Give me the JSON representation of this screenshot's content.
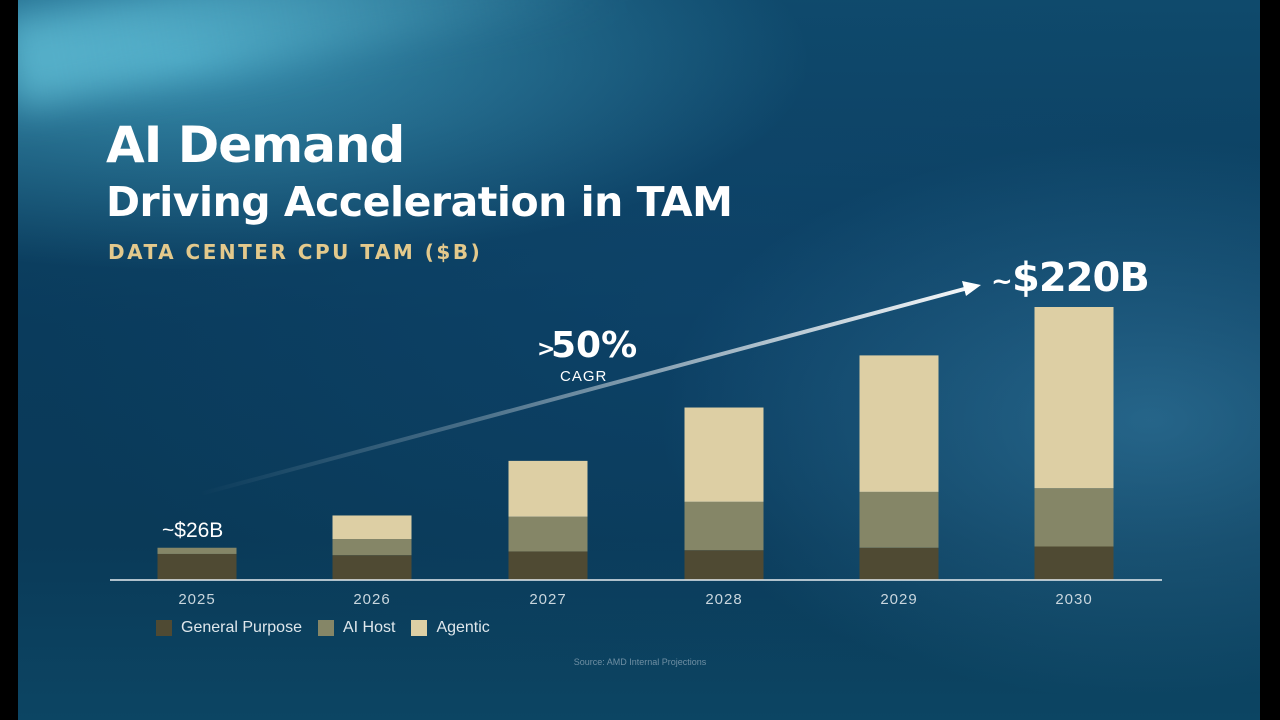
{
  "slide": {
    "title_line1": "AI Demand",
    "title_line2": "Driving Acceleration in TAM",
    "source": "Source: AMD Internal Projections"
  },
  "colors": {
    "general_purpose": "#4f4a33",
    "ai_host": "#858667",
    "agentic": "#ddcfa4",
    "accent_subtitle": "#e3c98c",
    "axis_line": "#e6edf1"
  },
  "chart_data": {
    "type": "bar",
    "stacked": true,
    "title": "DATA CENTER CPU TAM ($B)",
    "categories": [
      "2025",
      "2026",
      "2027",
      "2028",
      "2029",
      "2030"
    ],
    "series": [
      {
        "name": "General Purpose",
        "values": [
          21,
          20,
          23,
          24,
          26,
          27
        ]
      },
      {
        "name": "AI Host",
        "values": [
          5,
          13,
          28,
          39,
          45,
          47
        ]
      },
      {
        "name": "Agentic",
        "values": [
          0,
          19,
          45,
          76,
          110,
          146
        ]
      }
    ],
    "ylim": [
      0,
      220
    ],
    "grid": false,
    "legend_position": "bottom-left",
    "annotations": {
      "start_value": "~$26B",
      "end_value_prefix": "~",
      "end_value": "$220B",
      "cagr_prefix": ">",
      "cagr_value": "50%",
      "cagr_label": "CAGR"
    }
  }
}
